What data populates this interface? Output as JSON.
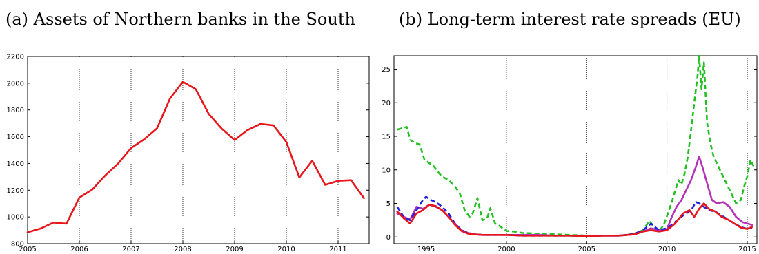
{
  "chart_data": [
    {
      "type": "line",
      "title": "(a) Assets of Northern banks in the South",
      "xlabel": "",
      "ylabel": "",
      "xlim": [
        2005,
        2011.6
      ],
      "ylim": [
        800,
        2200
      ],
      "x_ticks": [
        "2005",
        "2006",
        "2007",
        "2008",
        "2009",
        "2010",
        "2011"
      ],
      "y_ticks": [
        "800",
        "1000",
        "1200",
        "1400",
        "1600",
        "1800",
        "2000",
        "2200"
      ],
      "grid": "vertical dotted at year ticks",
      "series": [
        {
          "color": "#e8161b",
          "style": "solid",
          "x": [
            2005.0,
            2005.25,
            2005.5,
            2005.75,
            2006.0,
            2006.25,
            2006.5,
            2006.75,
            2007.0,
            2007.25,
            2007.5,
            2007.75,
            2008.0,
            2008.25,
            2008.5,
            2008.75,
            2009.0,
            2009.25,
            2009.5,
            2009.75,
            2010.0,
            2010.25,
            2010.5,
            2010.75,
            2011.0,
            2011.25,
            2011.5
          ],
          "values": [
            885,
            913,
            958,
            950,
            1145,
            1205,
            1310,
            1400,
            1515,
            1580,
            1662,
            1885,
            2010,
            1955,
            1770,
            1660,
            1575,
            1650,
            1695,
            1685,
            1560,
            1295,
            1420,
            1240,
            1270,
            1275,
            1140
          ]
        }
      ]
    },
    {
      "type": "line",
      "title": "(b) Long-term interest rate spreads (EU)",
      "xlabel": "",
      "ylabel": "",
      "xlim": [
        1993,
        2015.6
      ],
      "ylim": [
        -1,
        27
      ],
      "x_ticks": [
        "1995",
        "2000",
        "2005",
        "2010",
        "2015"
      ],
      "y_ticks": [
        "0",
        "5",
        "10",
        "15",
        "20",
        "25"
      ],
      "grid": "vertical dotted at tick years",
      "series": [
        {
          "color": "#22c022",
          "style": "dashed",
          "x": [
            1993.2,
            1993.5,
            1993.8,
            1994.0,
            1994.3,
            1994.6,
            1994.9,
            1995.2,
            1995.5,
            1995.8,
            1996.0,
            1996.4,
            1996.8,
            1997.1,
            1997.4,
            1997.7,
            1997.9,
            1998.2,
            1998.5,
            1998.8,
            1999.0,
            1999.3,
            1999.6,
            2000.0,
            2000.5,
            2001,
            2002,
            2003,
            2004,
            2005,
            2006,
            2007,
            2007.5,
            2008,
            2008.5,
            2008.9,
            2009.2,
            2009.5,
            2009.8,
            2010.1,
            2010.4,
            2010.7,
            2010.9,
            2011.1,
            2011.3,
            2011.5,
            2011.7,
            2011.9,
            2012.0,
            2012.15,
            2012.3,
            2012.5,
            2012.7,
            2012.9,
            2013.1,
            2013.4,
            2013.7,
            2014.0,
            2014.3,
            2014.6,
            2014.8,
            2015.0,
            2015.2,
            2015.4
          ],
          "values": [
            16.0,
            16.2,
            16.4,
            14.5,
            14.0,
            13.8,
            11.5,
            11.0,
            10.5,
            9.5,
            9.0,
            8.5,
            7.5,
            6.5,
            4.0,
            3.0,
            3.5,
            5.8,
            2.5,
            2.8,
            4.3,
            2.0,
            1.6,
            0.9,
            0.8,
            0.6,
            0.5,
            0.4,
            0.3,
            0.2,
            0.2,
            0.2,
            0.3,
            0.5,
            1.0,
            2.4,
            1.5,
            0.8,
            1.8,
            3.8,
            6.0,
            8.5,
            7.8,
            9.5,
            12.0,
            16.0,
            20.0,
            24.0,
            27.0,
            22.0,
            26.0,
            17.0,
            14.0,
            12.0,
            11.0,
            9.5,
            8.0,
            6.5,
            5.0,
            5.5,
            7.5,
            9.0,
            11.5,
            10.5
          ]
        },
        {
          "color": "#b531b5",
          "style": "solid",
          "x": [
            1993.2,
            1993.6,
            1994.0,
            1994.4,
            1994.8,
            1995.2,
            1995.6,
            1996.0,
            1996.4,
            1996.8,
            1997.2,
            1997.6,
            1998.0,
            1998.5,
            1999,
            2000,
            2001,
            2002,
            2003,
            2004,
            2005,
            2006,
            2007,
            2007.5,
            2008,
            2008.5,
            2009,
            2009.5,
            2010,
            2010.3,
            2010.6,
            2010.9,
            2011.2,
            2011.5,
            2011.8,
            2012.0,
            2012.2,
            2012.5,
            2012.8,
            2013.1,
            2013.5,
            2013.9,
            2014.3,
            2014.7,
            2015.0,
            2015.3
          ],
          "values": [
            3.5,
            3.0,
            2.6,
            4.5,
            4.2,
            4.8,
            4.5,
            4.0,
            3.0,
            2.0,
            1.0,
            0.6,
            0.4,
            0.3,
            0.3,
            0.3,
            0.3,
            0.3,
            0.2,
            0.2,
            0.2,
            0.2,
            0.2,
            0.3,
            0.4,
            0.8,
            1.3,
            1.0,
            1.2,
            3.0,
            4.5,
            5.5,
            7.0,
            8.5,
            10.5,
            12.0,
            10.5,
            8.0,
            5.5,
            5.0,
            5.2,
            4.5,
            3.0,
            2.2,
            2.0,
            1.8
          ]
        },
        {
          "color": "#1f1fe0",
          "style": "dashed",
          "x": [
            1993.2,
            1993.6,
            1994.0,
            1994.4,
            1994.8,
            1995.0,
            1995.3,
            1995.6,
            1996.0,
            1996.4,
            1996.8,
            1997.2,
            1997.6,
            1998.0,
            1998.5,
            1999,
            2000,
            2001,
            2002,
            2003,
            2004,
            2005,
            2006,
            2007,
            2007.5,
            2008,
            2008.5,
            2009,
            2009.5,
            2010,
            2010.5,
            2011.0,
            2011.5,
            2011.8,
            2012.0,
            2012.3,
            2012.6,
            2013.0,
            2013.4,
            2013.8,
            2014.2,
            2014.6,
            2015.0,
            2015.3
          ],
          "values": [
            4.5,
            3.0,
            2.5,
            4.0,
            5.5,
            6.0,
            5.5,
            5.2,
            4.5,
            3.5,
            2.0,
            1.0,
            0.6,
            0.4,
            0.3,
            0.3,
            0.3,
            0.2,
            0.2,
            0.2,
            0.2,
            0.1,
            0.2,
            0.2,
            0.3,
            0.5,
            1.0,
            2.0,
            1.0,
            1.3,
            2.2,
            3.2,
            4.0,
            5.2,
            5.0,
            4.5,
            4.0,
            3.8,
            3.2,
            2.6,
            2.0,
            1.5,
            1.2,
            1.4
          ]
        },
        {
          "color": "#e8161b",
          "style": "solid",
          "x": [
            1993.2,
            1993.6,
            1994.0,
            1994.4,
            1994.8,
            1995.2,
            1995.6,
            1996.0,
            1996.4,
            1996.8,
            1997.2,
            1997.6,
            1998.0,
            1998.5,
            1999,
            2000,
            2001,
            2002,
            2003,
            2004,
            2005,
            2006,
            2007,
            2007.5,
            2008,
            2008.5,
            2009,
            2009.5,
            2010,
            2010.5,
            2011.0,
            2011.4,
            2011.7,
            2012.0,
            2012.3,
            2012.6,
            2013.0,
            2013.4,
            2013.8,
            2014.2,
            2014.6,
            2015.0,
            2015.3
          ],
          "values": [
            3.8,
            2.8,
            2.0,
            3.5,
            4.0,
            4.8,
            4.6,
            4.0,
            3.0,
            1.8,
            0.9,
            0.5,
            0.4,
            0.3,
            0.3,
            0.3,
            0.2,
            0.2,
            0.2,
            0.2,
            0.1,
            0.2,
            0.2,
            0.3,
            0.4,
            0.8,
            1.0,
            0.8,
            1.0,
            2.0,
            3.5,
            4.0,
            3.0,
            4.2,
            5.0,
            4.2,
            3.8,
            3.0,
            2.6,
            2.0,
            1.4,
            1.2,
            1.5
          ]
        }
      ]
    }
  ]
}
